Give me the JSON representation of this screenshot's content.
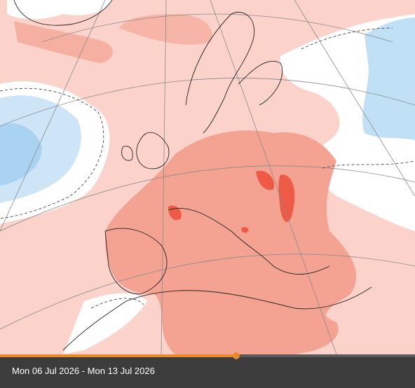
{
  "caption": {
    "date_range": "Mon 06 Jul 2026 - Mon 13 Jul 2026"
  }
}
